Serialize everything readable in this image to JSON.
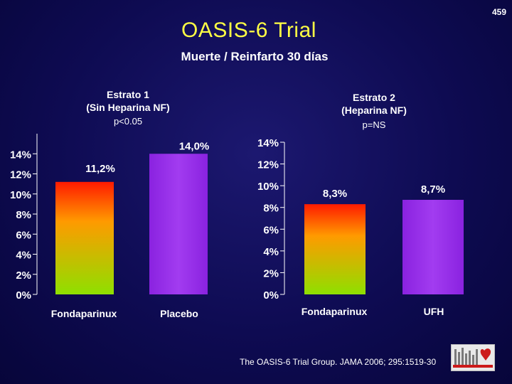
{
  "slide_number": "459",
  "title": "OASIS-6 Trial",
  "subtitle": "Muerte / Reinfarto 30 días",
  "citation": "The OASIS-6 Trial Group. JAMA 2006; 295:1519-30",
  "colors": {
    "title": "#ffff44",
    "bar_gradient_top": "#ff1a00",
    "bar_gradient_mid": "#ff9a00",
    "bar_gradient_bottom": "#8ee000",
    "placebo_bar": "#9a2ee8"
  },
  "chart_data": [
    {
      "type": "bar",
      "title_lines": [
        "Estrato 1",
        "(Sin Heparina NF)"
      ],
      "p_value": "p<0.05",
      "categories": [
        "Fondaparinux",
        "Placebo"
      ],
      "values": [
        11.2,
        14.0
      ],
      "value_labels": [
        "11,2%",
        "14,0%"
      ],
      "ylim": [
        0,
        16
      ],
      "y_ticks": [
        0,
        2,
        4,
        6,
        8,
        10,
        12,
        14
      ],
      "y_tick_labels": [
        "0%",
        "2%",
        "4%",
        "6%",
        "8%",
        "10%",
        "12%",
        "14%"
      ],
      "bar_styles": [
        "gradient",
        "purple"
      ]
    },
    {
      "type": "bar",
      "title_lines": [
        "Estrato 2",
        "(Heparina NF)"
      ],
      "p_value": "p=NS",
      "categories": [
        "Fondaparinux",
        "UFH"
      ],
      "values": [
        8.3,
        8.7
      ],
      "value_labels": [
        "8,3%",
        "8,7%"
      ],
      "ylim": [
        0,
        14
      ],
      "y_ticks": [
        0,
        2,
        4,
        6,
        8,
        10,
        12,
        14
      ],
      "y_tick_labels": [
        "0%",
        "2%",
        "4%",
        "6%",
        "8%",
        "10%",
        "12%",
        "14%"
      ],
      "bar_styles": [
        "gradient",
        "purple"
      ]
    }
  ]
}
